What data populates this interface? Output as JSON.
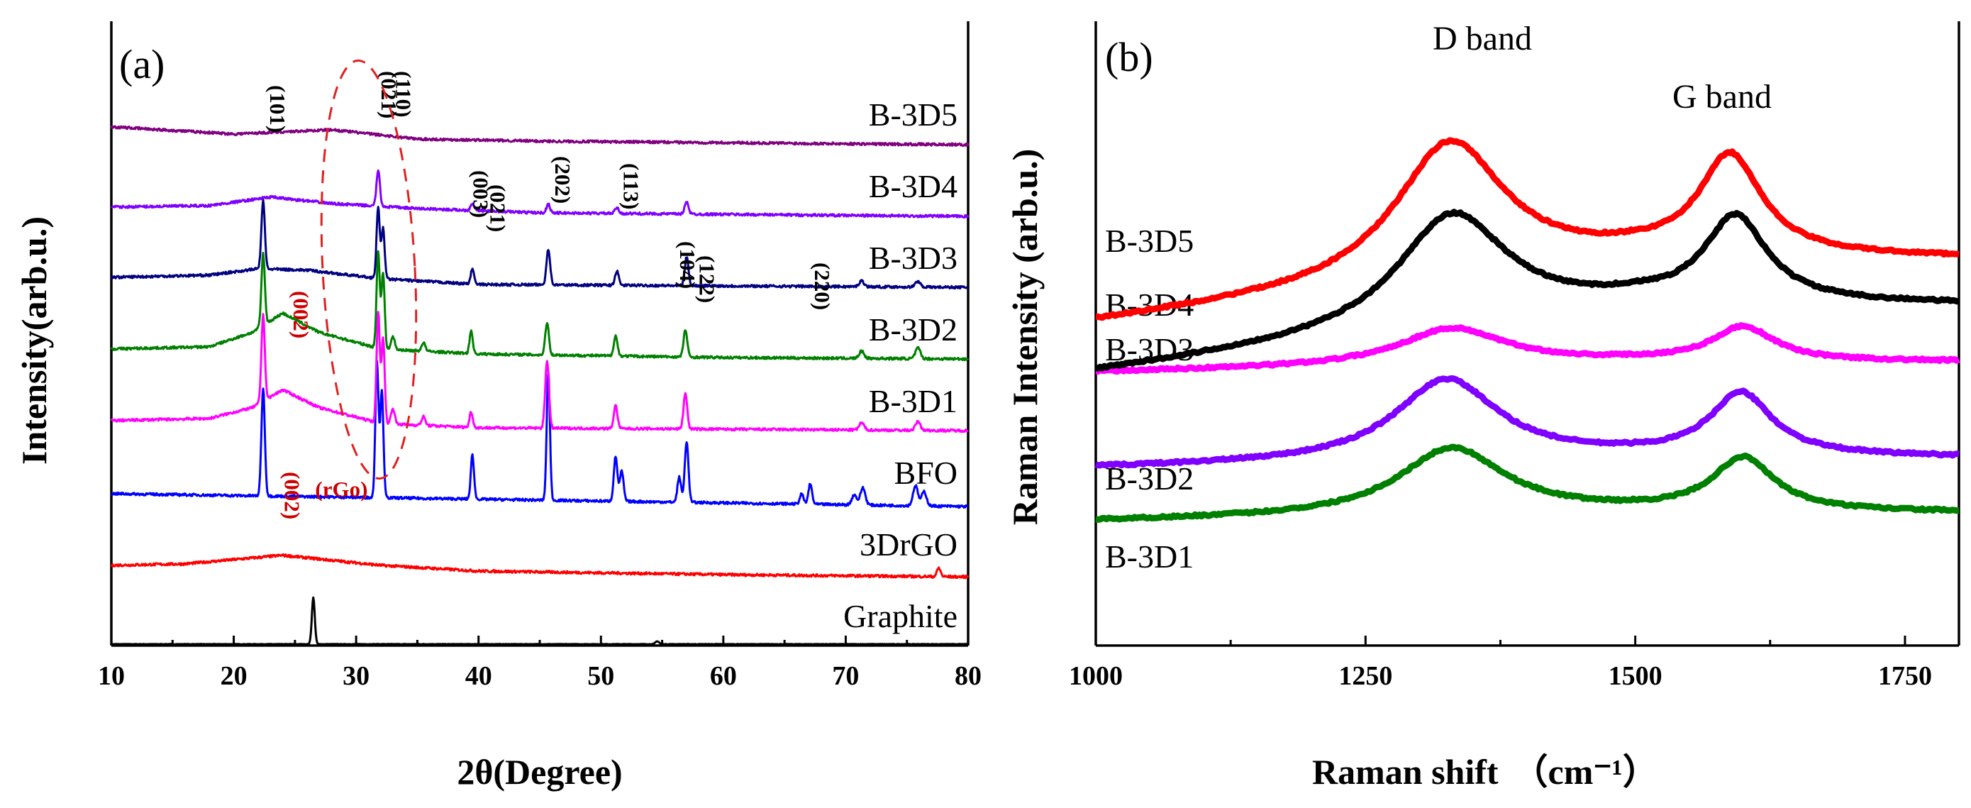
{
  "chart_data": [
    {
      "type": "line",
      "panel": "(a)",
      "xlabel": "2θ(Degree)",
      "ylabel": "Intensity(arb.u.)",
      "xlim": [
        10,
        80
      ],
      "xticks": [
        10,
        20,
        30,
        40,
        50,
        60,
        70,
        80
      ],
      "series": [
        {
          "name": "Graphite",
          "color": "#000000",
          "offset": 0.0,
          "bg": [
            [
              10,
              0
            ],
            [
              80,
              0
            ]
          ],
          "peaks": [
            [
              26.5,
              0.65,
              0.12
            ],
            [
              54.6,
              0.04,
              0.15
            ]
          ]
        },
        {
          "name": "3DrGO",
          "color": "#ff0000",
          "offset": 1.0,
          "bg": [
            [
              10,
              0.1
            ],
            [
              16,
              0.12
            ],
            [
              24,
              0.24
            ],
            [
              32,
              0.1
            ],
            [
              40,
              0.02
            ],
            [
              60,
              -0.03
            ],
            [
              79,
              -0.06
            ],
            [
              80,
              -0.06
            ]
          ],
          "peaks": [
            [
              77.6,
              0.12,
              0.15
            ]
          ]
        },
        {
          "name": "BFO",
          "color": "#0000ff",
          "offset": 2.0,
          "bg": [
            [
              10,
              0.1
            ],
            [
              80,
              -0.08
            ]
          ],
          "peaks": [
            [
              22.4,
              1.5,
              0.14
            ],
            [
              31.7,
              1.9,
              0.13
            ],
            [
              32.1,
              1.5,
              0.13
            ],
            [
              39.5,
              0.62,
              0.13
            ],
            [
              45.7,
              1.8,
              0.13
            ],
            [
              51.2,
              0.62,
              0.15
            ],
            [
              51.7,
              0.42,
              0.15
            ],
            [
              56.4,
              0.35,
              0.15
            ],
            [
              57.0,
              0.85,
              0.15
            ],
            [
              66.4,
              0.14,
              0.15
            ],
            [
              67.1,
              0.28,
              0.15
            ],
            [
              70.7,
              0.14,
              0.2
            ],
            [
              71.4,
              0.24,
              0.2
            ],
            [
              75.7,
              0.28,
              0.2
            ],
            [
              76.4,
              0.2,
              0.2
            ]
          ]
        },
        {
          "name": "B-3D1",
          "color": "#ff00ff",
          "offset": 3.0,
          "bg": [
            [
              10,
              0.12
            ],
            [
              18,
              0.15
            ],
            [
              21.5,
              0.3
            ],
            [
              24,
              0.55
            ],
            [
              27,
              0.3
            ],
            [
              32,
              0.08
            ],
            [
              40,
              0.02
            ],
            [
              60,
              0
            ],
            [
              80,
              -0.02
            ]
          ],
          "peaks": [
            [
              22.4,
              1.2,
              0.14
            ],
            [
              31.8,
              1.55,
              0.13
            ],
            [
              32.2,
              1.2,
              0.13
            ],
            [
              33.0,
              0.22,
              0.15
            ],
            [
              35.5,
              0.12,
              0.15
            ],
            [
              39.4,
              0.22,
              0.13
            ],
            [
              45.6,
              0.95,
              0.15
            ],
            [
              51.2,
              0.32,
              0.15
            ],
            [
              56.9,
              0.5,
              0.15
            ],
            [
              71.3,
              0.1,
              0.2
            ],
            [
              75.9,
              0.12,
              0.2
            ]
          ]
        },
        {
          "name": "B-3D2",
          "color": "#008000",
          "offset": 4.0,
          "bg": [
            [
              10,
              0.12
            ],
            [
              18,
              0.15
            ],
            [
              21.5,
              0.35
            ],
            [
              24,
              0.62
            ],
            [
              27,
              0.35
            ],
            [
              32,
              0.12
            ],
            [
              40,
              0.05
            ],
            [
              60,
              0
            ],
            [
              80,
              -0.02
            ]
          ],
          "peaks": [
            [
              22.4,
              1.0,
              0.14
            ],
            [
              31.8,
              1.35,
              0.13
            ],
            [
              32.2,
              1.05,
              0.13
            ],
            [
              33.0,
              0.18,
              0.15
            ],
            [
              35.5,
              0.12,
              0.15
            ],
            [
              39.4,
              0.32,
              0.13
            ],
            [
              45.6,
              0.45,
              0.15
            ],
            [
              51.2,
              0.28,
              0.15
            ],
            [
              56.9,
              0.38,
              0.15
            ],
            [
              71.3,
              0.1,
              0.2
            ],
            [
              75.9,
              0.15,
              0.2
            ]
          ]
        },
        {
          "name": "B-3D3",
          "color": "#000080",
          "offset": 5.0,
          "bg": [
            [
              10,
              0.12
            ],
            [
              18,
              0.15
            ],
            [
              22,
              0.24
            ],
            [
              26,
              0.22
            ],
            [
              32,
              0.1
            ],
            [
              40,
              0.02
            ],
            [
              60,
              0
            ],
            [
              80,
              -0.02
            ]
          ],
          "peaks": [
            [
              22.4,
              0.95,
              0.14
            ],
            [
              31.8,
              1.0,
              0.13
            ],
            [
              32.2,
              0.7,
              0.13
            ],
            [
              39.5,
              0.22,
              0.13
            ],
            [
              45.7,
              0.5,
              0.15
            ],
            [
              51.3,
              0.2,
              0.15
            ],
            [
              57.0,
              0.4,
              0.15
            ],
            [
              71.3,
              0.08,
              0.2
            ],
            [
              75.9,
              0.08,
              0.2
            ]
          ]
        },
        {
          "name": "B-3D4",
          "color": "#8000ff",
          "offset": 6.0,
          "bg": [
            [
              10,
              0.1
            ],
            [
              18,
              0.12
            ],
            [
              23,
              0.24
            ],
            [
              28,
              0.15
            ],
            [
              35,
              0.08
            ],
            [
              45,
              0.02
            ],
            [
              80,
              -0.03
            ]
          ],
          "peaks": [
            [
              31.8,
              0.5,
              0.14
            ],
            [
              39.5,
              0.1,
              0.15
            ],
            [
              45.7,
              0.12,
              0.15
            ],
            [
              51.3,
              0.08,
              0.15
            ],
            [
              57.0,
              0.18,
              0.15
            ]
          ]
        },
        {
          "name": "B-3D5",
          "color": "#800080",
          "offset": 7.0,
          "bg": [
            [
              10,
              0.22
            ],
            [
              20,
              0.12
            ],
            [
              28,
              0.18
            ],
            [
              35,
              0.05
            ],
            [
              45,
              0.02
            ],
            [
              80,
              -0.03
            ]
          ],
          "peaks": []
        }
      ],
      "annotations": [
        {
          "text": "(101)",
          "x": 22.4,
          "color": "#000000"
        },
        {
          "text": "(021)",
          "x": 31.5,
          "color": "#000000"
        },
        {
          "text": "(110)",
          "x": 32.7,
          "color": "#000000"
        },
        {
          "text": "(003)",
          "x": 39.0,
          "color": "#000000"
        },
        {
          "text": "(021)",
          "x": 40.4,
          "color": "#000000"
        },
        {
          "text": "(202)",
          "x": 45.7,
          "color": "#000000"
        },
        {
          "text": "(113)",
          "x": 51.3,
          "color": "#000000"
        },
        {
          "text": "(104)",
          "x": 55.9,
          "color": "#000000"
        },
        {
          "text": "(122)",
          "x": 57.5,
          "color": "#000000"
        },
        {
          "text": "(220)",
          "x": 66.9,
          "color": "#000000"
        },
        {
          "text": "(002)",
          "x": 24.3,
          "color": "#cc0000"
        },
        {
          "text": "(002)",
          "x": 23.6,
          "color": "#cc0000"
        },
        {
          "text": "(rGo)",
          "x": 28.8,
          "color": "#cc0000"
        }
      ]
    },
    {
      "type": "line",
      "panel": "(b)",
      "xlabel": "Raman shift",
      "xlabel_unit": "（cm⁻¹）",
      "ylabel": "Raman Intensity (arb.u.)",
      "xlim": [
        1000,
        1800
      ],
      "xticks": [
        1000,
        1250,
        1500,
        1750
      ],
      "band_labels": [
        "D band",
        "G band"
      ],
      "series": [
        {
          "name": "B-3D1",
          "color": "#008000",
          "base": [
            1.1,
            1.22
          ],
          "D": [
            1330,
            0.95,
            60
          ],
          "G": [
            1600,
            0.75,
            35
          ]
        },
        {
          "name": "B-3D2",
          "color": "#8000ff",
          "base": [
            1.85,
            2.0
          ],
          "D": [
            1325,
            1.15,
            58
          ],
          "G": [
            1598,
            0.88,
            35
          ]
        },
        {
          "name": "B-3D3",
          "color": "#ff00ff",
          "base": [
            3.2,
            3.35
          ],
          "D": [
            1330,
            0.52,
            60
          ],
          "G": [
            1600,
            0.48,
            35
          ]
        },
        {
          "name": "B-3D4",
          "color": "#000000",
          "base": [
            3.2,
            4.15
          ],
          "D": [
            1330,
            1.6,
            62
          ],
          "G": [
            1593,
            1.2,
            35
          ]
        },
        {
          "name": "B-3D5",
          "color": "#ff0000",
          "base": [
            3.9,
            4.8
          ],
          "D": [
            1328,
            1.95,
            62
          ],
          "G": [
            1588,
            1.4,
            35
          ]
        }
      ]
    }
  ]
}
